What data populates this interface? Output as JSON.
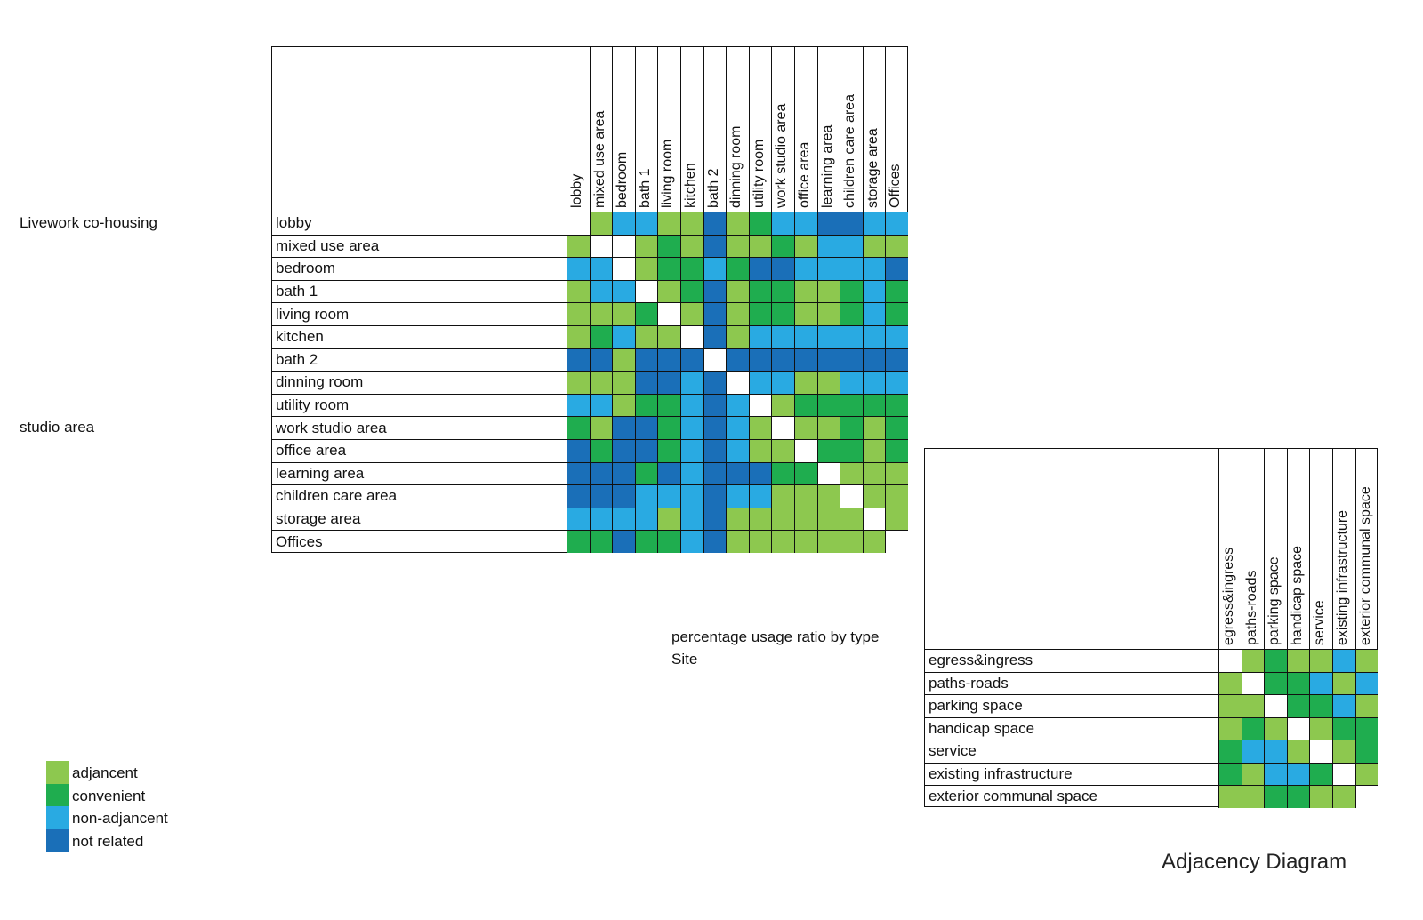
{
  "labels": {
    "livework": "Livework co-housing",
    "studio": "studio area",
    "percentage": "percentage usage ratio by type",
    "site": "Site",
    "diagram_title": "Adjacency Diagram"
  },
  "colors": {
    "a": "#8dc84f",
    "c": "#1fad4f",
    "n": "#29aae2",
    "r": "#1a6fb8",
    "x": "#ffffff"
  },
  "legend": [
    {
      "key": "a",
      "label": "adjancent"
    },
    {
      "key": "c",
      "label": "convenient"
    },
    {
      "key": "n",
      "label": "non-adjancent"
    },
    {
      "key": "r",
      "label": "not related"
    }
  ],
  "main_matrix": {
    "items": [
      "lobby",
      "mixed use area",
      "bedroom",
      "bath 1",
      "living room",
      "kitchen",
      "bath 2",
      "dinning room",
      "utility room",
      "work studio area",
      "office area",
      "learning area",
      "children care area",
      "storage area",
      "Offices"
    ],
    "rows": [
      [
        "x",
        "a",
        "n",
        "n",
        "a",
        "a",
        "r",
        "a",
        "c",
        "n",
        "n",
        "r",
        "r",
        "n",
        "n"
      ],
      [
        "a",
        "x",
        "x",
        "a",
        "c",
        "a",
        "r",
        "a",
        "a",
        "c",
        "a",
        "n",
        "n",
        "a",
        "a"
      ],
      [
        "n",
        "n",
        "x",
        "a",
        "c",
        "c",
        "n",
        "c",
        "r",
        "r",
        "n",
        "n",
        "n",
        "n",
        "r"
      ],
      [
        "a",
        "n",
        "n",
        "x",
        "a",
        "c",
        "r",
        "a",
        "c",
        "c",
        "a",
        "a",
        "c",
        "n",
        "c"
      ],
      [
        "a",
        "a",
        "a",
        "c",
        "x",
        "a",
        "r",
        "a",
        "c",
        "c",
        "a",
        "a",
        "c",
        "n",
        "c"
      ],
      [
        "a",
        "c",
        "n",
        "a",
        "a",
        "x",
        "r",
        "a",
        "n",
        "n",
        "n",
        "n",
        "n",
        "n",
        "n"
      ],
      [
        "r",
        "r",
        "a",
        "r",
        "r",
        "r",
        "x",
        "r",
        "r",
        "r",
        "r",
        "r",
        "r",
        "r",
        "r"
      ],
      [
        "a",
        "a",
        "a",
        "r",
        "r",
        "n",
        "r",
        "x",
        "n",
        "n",
        "a",
        "a",
        "n",
        "n",
        "n"
      ],
      [
        "n",
        "n",
        "a",
        "c",
        "c",
        "n",
        "r",
        "n",
        "x",
        "a",
        "c",
        "c",
        "c",
        "c",
        "c"
      ],
      [
        "c",
        "a",
        "r",
        "r",
        "c",
        "n",
        "r",
        "n",
        "a",
        "x",
        "a",
        "a",
        "c",
        "a",
        "c"
      ],
      [
        "r",
        "c",
        "r",
        "r",
        "c",
        "n",
        "r",
        "n",
        "a",
        "a",
        "x",
        "c",
        "c",
        "a",
        "c"
      ],
      [
        "r",
        "r",
        "r",
        "c",
        "r",
        "n",
        "r",
        "r",
        "r",
        "c",
        "c",
        "x",
        "a",
        "a",
        "a"
      ],
      [
        "r",
        "r",
        "r",
        "n",
        "n",
        "n",
        "r",
        "n",
        "n",
        "a",
        "a",
        "a",
        "x",
        "a",
        "a"
      ],
      [
        "n",
        "n",
        "n",
        "n",
        "a",
        "n",
        "r",
        "a",
        "a",
        "a",
        "a",
        "a",
        "a",
        "x",
        "a"
      ],
      [
        "c",
        "c",
        "r",
        "c",
        "c",
        "n",
        "r",
        "a",
        "a",
        "a",
        "a",
        "a",
        "a",
        "a",
        "x"
      ]
    ]
  },
  "site_matrix": {
    "items": [
      "egress&ingress",
      "paths-roads",
      "parking space",
      "handicap space",
      "service",
      "existing infrastructure",
      "exterior communal space"
    ],
    "rows": [
      [
        "x",
        "a",
        "c",
        "a",
        "a",
        "n",
        "a"
      ],
      [
        "a",
        "x",
        "c",
        "c",
        "n",
        "a",
        "n"
      ],
      [
        "a",
        "a",
        "x",
        "c",
        "c",
        "n",
        "a"
      ],
      [
        "a",
        "c",
        "a",
        "x",
        "a",
        "c",
        "c"
      ],
      [
        "c",
        "n",
        "n",
        "a",
        "x",
        "a",
        "c"
      ],
      [
        "c",
        "a",
        "n",
        "n",
        "c",
        "x",
        "a"
      ],
      [
        "a",
        "a",
        "c",
        "c",
        "a",
        "a",
        "x"
      ]
    ]
  }
}
